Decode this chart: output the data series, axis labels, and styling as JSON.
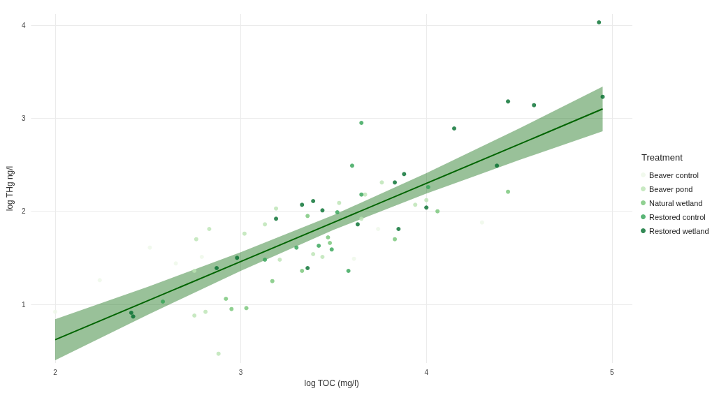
{
  "chart_data": {
    "type": "scatter",
    "xlabel": "log TOC (mg/l)",
    "ylabel": "log THg ng/l",
    "legend_title": "Treatment",
    "legend": "right",
    "grid": true,
    "marker": "circle",
    "xlim": [
      1.87,
      5.11
    ],
    "ylim": [
      0.37,
      4.12
    ],
    "xticks": [
      2,
      3,
      4,
      5
    ],
    "yticks": [
      1,
      2,
      3,
      4
    ],
    "series": [
      {
        "name": "Beaver control",
        "color": "#edf8e9",
        "x": [
          2.0,
          2.24,
          2.51,
          2.65,
          2.79,
          3.61,
          3.74,
          4.3
        ],
        "values": [
          0.92,
          1.26,
          1.61,
          1.44,
          1.51,
          1.49,
          1.81,
          1.88
        ]
      },
      {
        "name": "Beaver pond",
        "color": "#bae4b3",
        "x": [
          3.19,
          3.13,
          3.02,
          3.21,
          3.39,
          3.44,
          3.53,
          3.67,
          3.65,
          3.76,
          3.94,
          4.0,
          2.75,
          2.75,
          2.81,
          2.83,
          2.88,
          2.76
        ],
        "values": [
          2.03,
          1.86,
          1.76,
          1.48,
          1.54,
          1.51,
          2.09,
          2.18,
          1.92,
          2.31,
          2.07,
          2.12,
          1.36,
          0.88,
          0.92,
          1.81,
          0.47,
          1.7
        ]
      },
      {
        "name": "Natural wetland",
        "color": "#74c476",
        "x": [
          3.83,
          4.06,
          4.44,
          3.36,
          3.47,
          3.48,
          3.17,
          3.33,
          2.92,
          2.95,
          3.03
        ],
        "values": [
          1.7,
          2.0,
          2.21,
          1.95,
          1.72,
          1.66,
          1.25,
          1.36,
          1.06,
          0.95,
          0.96
        ]
      },
      {
        "name": "Restored control",
        "color": "#31a354",
        "x": [
          3.65,
          3.6,
          3.65,
          4.01,
          3.52,
          3.13,
          3.3,
          3.42,
          3.49,
          3.58,
          2.58
        ],
        "values": [
          2.95,
          2.49,
          2.18,
          2.26,
          1.99,
          1.48,
          1.61,
          1.63,
          1.59,
          1.36,
          1.03
        ]
      },
      {
        "name": "Restored wetland",
        "color": "#006d2c",
        "x": [
          4.93,
          4.95,
          4.44,
          4.58,
          4.15,
          4.38,
          3.88,
          3.83,
          4.0,
          3.85,
          3.63,
          3.44,
          3.33,
          3.39,
          3.19,
          3.36,
          2.87,
          2.98,
          2.41,
          2.42
        ],
        "values": [
          4.03,
          3.23,
          3.18,
          3.14,
          2.89,
          2.49,
          2.4,
          2.31,
          2.04,
          1.81,
          1.86,
          2.01,
          2.07,
          2.11,
          1.92,
          1.39,
          1.39,
          1.5,
          0.91,
          0.87
        ]
      },
      {
        "type": "line",
        "marker": "none",
        "color": "#006400",
        "x": [
          2,
          2.5,
          3,
          3.5,
          4,
          4.5,
          4.95
        ],
        "values": [
          0.62,
          1.04,
          1.46,
          1.88,
          2.3,
          2.72,
          3.1
        ],
        "lower": [
          0.4,
          0.89,
          1.36,
          1.8,
          2.19,
          2.55,
          2.86
        ],
        "upper": [
          0.84,
          1.19,
          1.56,
          1.96,
          2.41,
          2.89,
          3.34
        ]
      }
    ]
  }
}
